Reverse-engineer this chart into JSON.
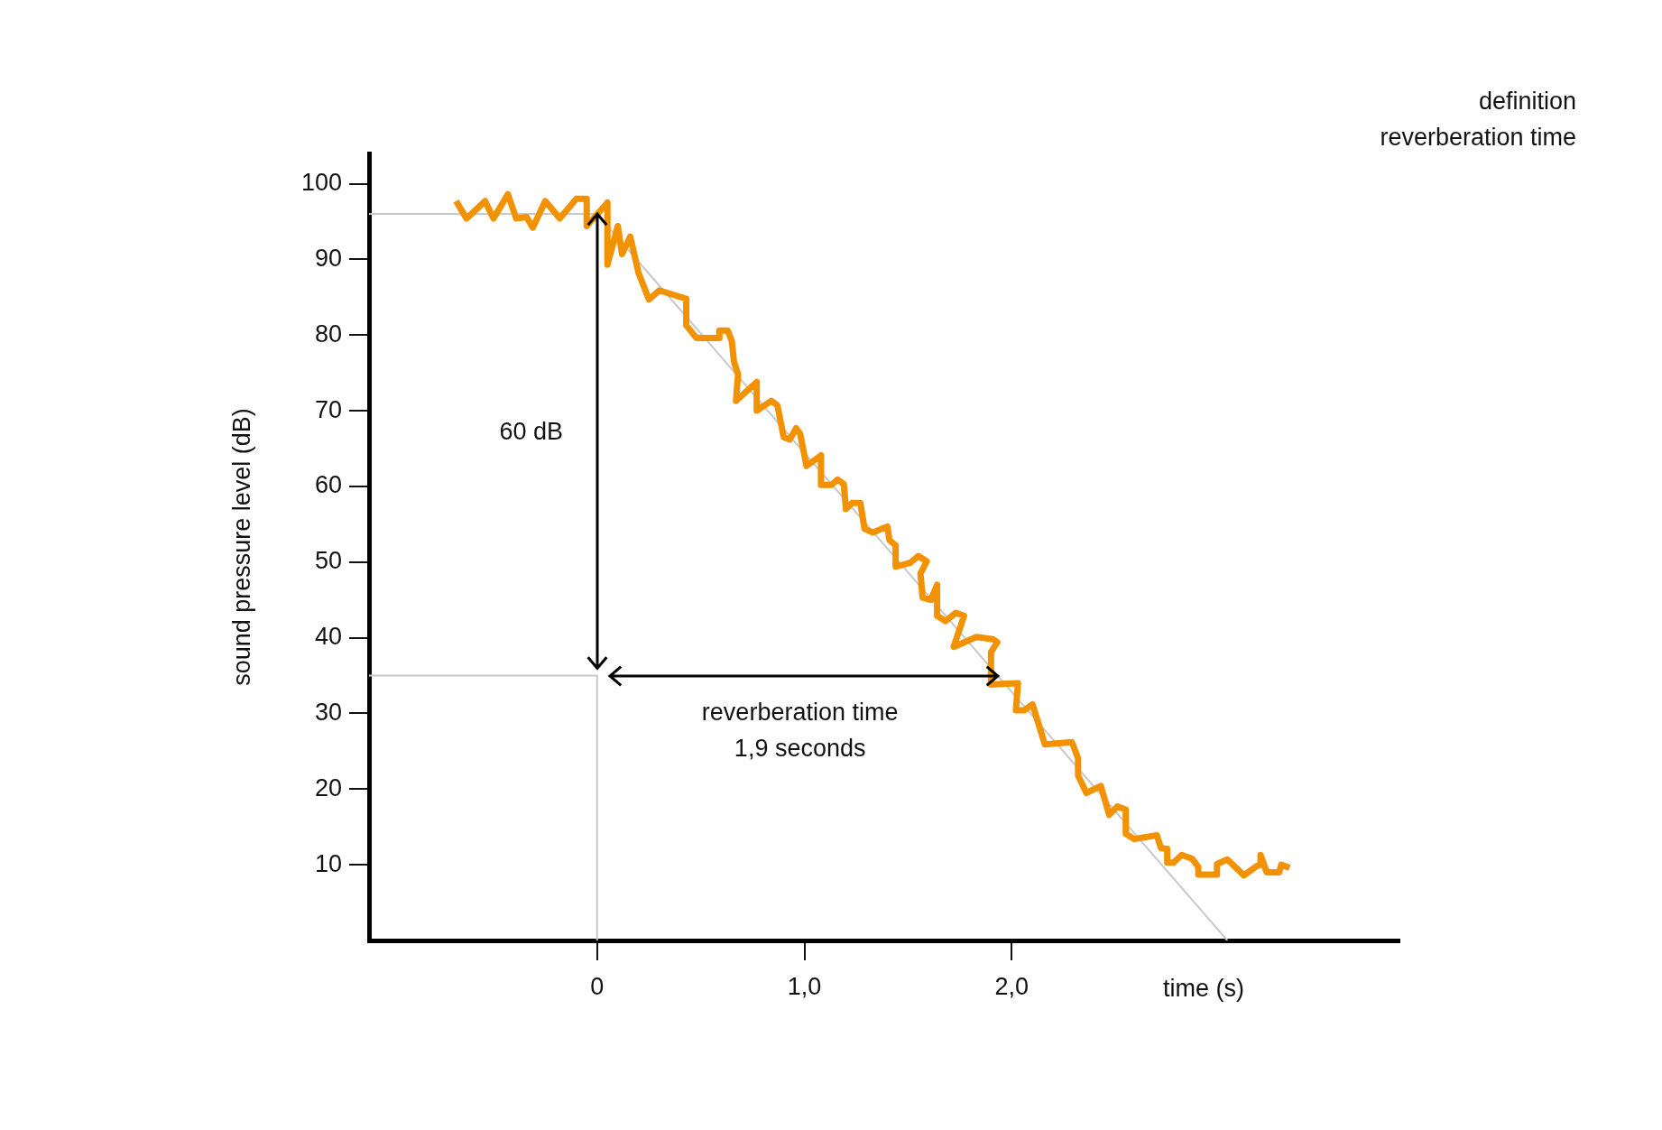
{
  "chart_data": {
    "type": "line",
    "title": "definition\nreverberation time",
    "xlabel": "time (s)",
    "ylabel": "sound pressure level (dB)",
    "xlim": [
      -1.1,
      3.87
    ],
    "ylim": [
      0,
      104
    ],
    "xticks": [
      0,
      {
        "value": 1,
        "label": "1,0"
      },
      {
        "value": 2,
        "label": "2,0"
      }
    ],
    "yticks": [
      10,
      20,
      30,
      40,
      50,
      60,
      70,
      80,
      90,
      100
    ],
    "marker": "none",
    "series": [
      {
        "color": "#f39200",
        "x": [
          -0.68,
          -0.63,
          -0.54,
          -0.5,
          -0.43,
          -0.39,
          -0.34,
          -0.31,
          -0.25,
          -0.18,
          -0.1,
          -0.05,
          -0.05,
          0.05,
          0.05,
          0.1,
          0.12,
          0.16,
          0.2,
          0.25,
          0.3,
          0.43,
          0.43,
          0.48,
          0.59,
          0.59,
          0.63,
          0.65,
          0.66,
          0.68,
          0.67,
          0.77,
          0.77,
          0.84,
          0.87,
          0.9,
          0.93,
          0.96,
          0.98,
          1.01,
          1.08,
          1.08,
          1.13,
          1.16,
          1.19,
          1.2,
          1.23,
          1.27,
          1.29,
          1.33,
          1.4,
          1.41,
          1.44,
          1.44,
          1.51,
          1.55,
          1.59,
          1.56,
          1.57,
          1.61,
          1.64,
          1.64,
          1.68,
          1.73,
          1.77,
          1.72,
          1.83,
          1.91,
          1.93,
          1.9,
          1.9,
          1.95,
          2.03,
          2.02,
          2.06,
          2.1,
          2.16,
          2.29,
          2.32,
          2.32,
          2.36,
          2.43,
          2.47,
          2.51,
          2.55,
          2.55,
          2.59,
          2.7,
          2.72,
          2.75,
          2.75,
          2.78,
          2.82,
          2.87,
          2.9,
          2.9,
          2.99,
          2.99,
          3.04,
          3.12,
          3.18,
          3.2,
          3.2,
          3.23,
          3.29,
          3.3,
          3.34
        ],
        "values": [
          97.7,
          95.4,
          97.7,
          95.4,
          98.6,
          95.4,
          95.6,
          94.2,
          97.7,
          95.4,
          98,
          98,
          94.4,
          97.5,
          89.3,
          94.4,
          90.7,
          93,
          88.2,
          84.7,
          85.9,
          84.8,
          81.3,
          79.6,
          79.6,
          80.6,
          80.6,
          79.2,
          76.5,
          74.8,
          71.3,
          73.8,
          70,
          71.3,
          70.7,
          66.5,
          66.2,
          67.7,
          66.9,
          62.7,
          64.1,
          60.2,
          60.2,
          60.9,
          60.3,
          57,
          57.8,
          57.8,
          54.4,
          53.9,
          54.7,
          52.9,
          52.2,
          49.4,
          49.9,
          50.8,
          50.1,
          48.5,
          45.3,
          45,
          47,
          42.9,
          42.2,
          43.3,
          42.9,
          38.8,
          40.1,
          39.8,
          39.4,
          38.1,
          33.8,
          33.9,
          34,
          30.4,
          30.4,
          31.2,
          25.9,
          26.2,
          24.1,
          21.8,
          19.5,
          20.4,
          16.6,
          17.7,
          17.3,
          14.1,
          13.4,
          13.9,
          12.2,
          12.1,
          10.3,
          10.3,
          11.3,
          10.8,
          9.7,
          8.7,
          8.7,
          10.1,
          10.7,
          8.6,
          9.8,
          10,
          11.3,
          9,
          9,
          10,
          9.6
        ]
      },
      {
        "color": "#c8c8c8",
        "x": [
          0,
          3.04
        ],
        "values": [
          96,
          0
        ]
      },
      {
        "color": "#c8c8c8",
        "x": [
          -1.1,
          0
        ],
        "values": [
          96,
          96
        ]
      },
      {
        "color": "#c8c8c8",
        "x": [
          -1.1,
          0,
          0
        ],
        "values": [
          35,
          35,
          0
        ]
      }
    ],
    "annotations": [
      "60 dB",
      "reverberation time\n1,9 seconds"
    ]
  }
}
